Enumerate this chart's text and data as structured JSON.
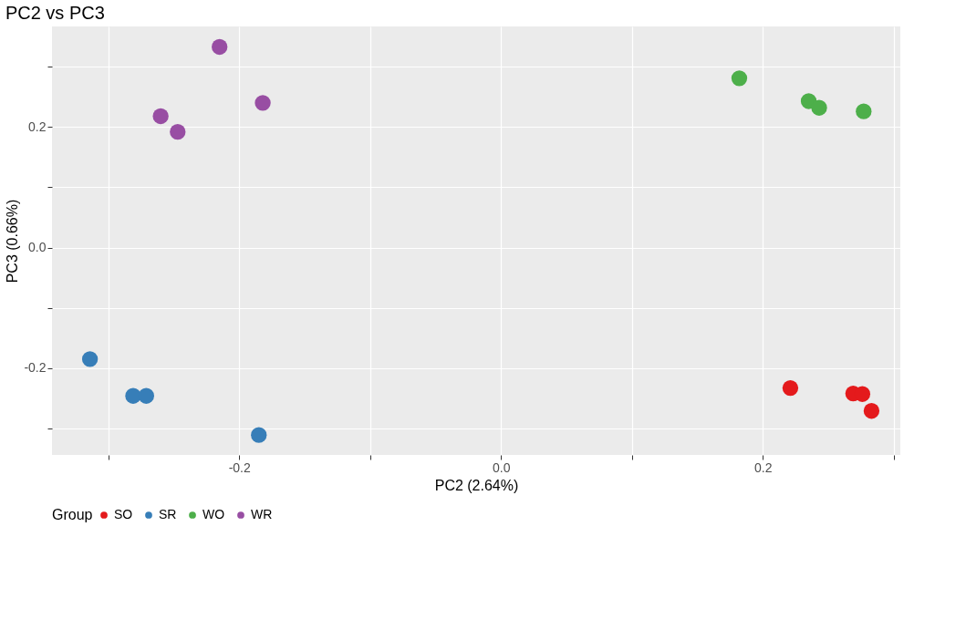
{
  "chart_data": {
    "type": "scatter",
    "title": "PC2 vs PC3",
    "xlabel": "PC2 (2.64%)",
    "ylabel": "PC3 (0.66%)",
    "legend_title": "Group",
    "series": [
      {
        "name": "SO",
        "color": "#e41a1c",
        "x": [
          0.221,
          0.269,
          0.276,
          0.283
        ],
        "values": [
          -0.233,
          -0.242,
          -0.243,
          -0.271
        ]
      },
      {
        "name": "SR",
        "color": "#377eb8",
        "x": [
          -0.314,
          -0.281,
          -0.271,
          -0.185
        ],
        "values": [
          -0.185,
          -0.246,
          -0.246,
          -0.311
        ]
      },
      {
        "name": "WO",
        "color": "#4daf4a",
        "x": [
          0.182,
          0.235,
          0.243,
          0.277
        ],
        "values": [
          0.281,
          0.243,
          0.232,
          0.226
        ]
      },
      {
        "name": "WR",
        "color": "#984ea3",
        "x": [
          -0.215,
          -0.26,
          -0.247,
          -0.182
        ],
        "values": [
          0.333,
          0.218,
          0.192,
          0.24
        ]
      }
    ],
    "xlim": [
      -0.343,
      0.305
    ],
    "ylim": [
      -0.344,
      0.367
    ],
    "xticks": [
      {
        "value": -0.3,
        "label": null
      },
      {
        "value": -0.2,
        "label": "-0.2"
      },
      {
        "value": -0.1,
        "label": null
      },
      {
        "value": 0.0,
        "label": "0.0"
      },
      {
        "value": 0.1,
        "label": null
      },
      {
        "value": 0.2,
        "label": "0.2"
      },
      {
        "value": 0.3,
        "label": null
      }
    ],
    "yticks": [
      {
        "value": -0.3,
        "label": null
      },
      {
        "value": -0.2,
        "label": "-0.2"
      },
      {
        "value": -0.1,
        "label": null
      },
      {
        "value": 0.0,
        "label": "0.0"
      },
      {
        "value": 0.1,
        "label": null
      },
      {
        "value": 0.2,
        "label": "0.2"
      },
      {
        "value": 0.3,
        "label": null
      }
    ],
    "grid": true,
    "legend": "bottom",
    "marker": "circle"
  }
}
